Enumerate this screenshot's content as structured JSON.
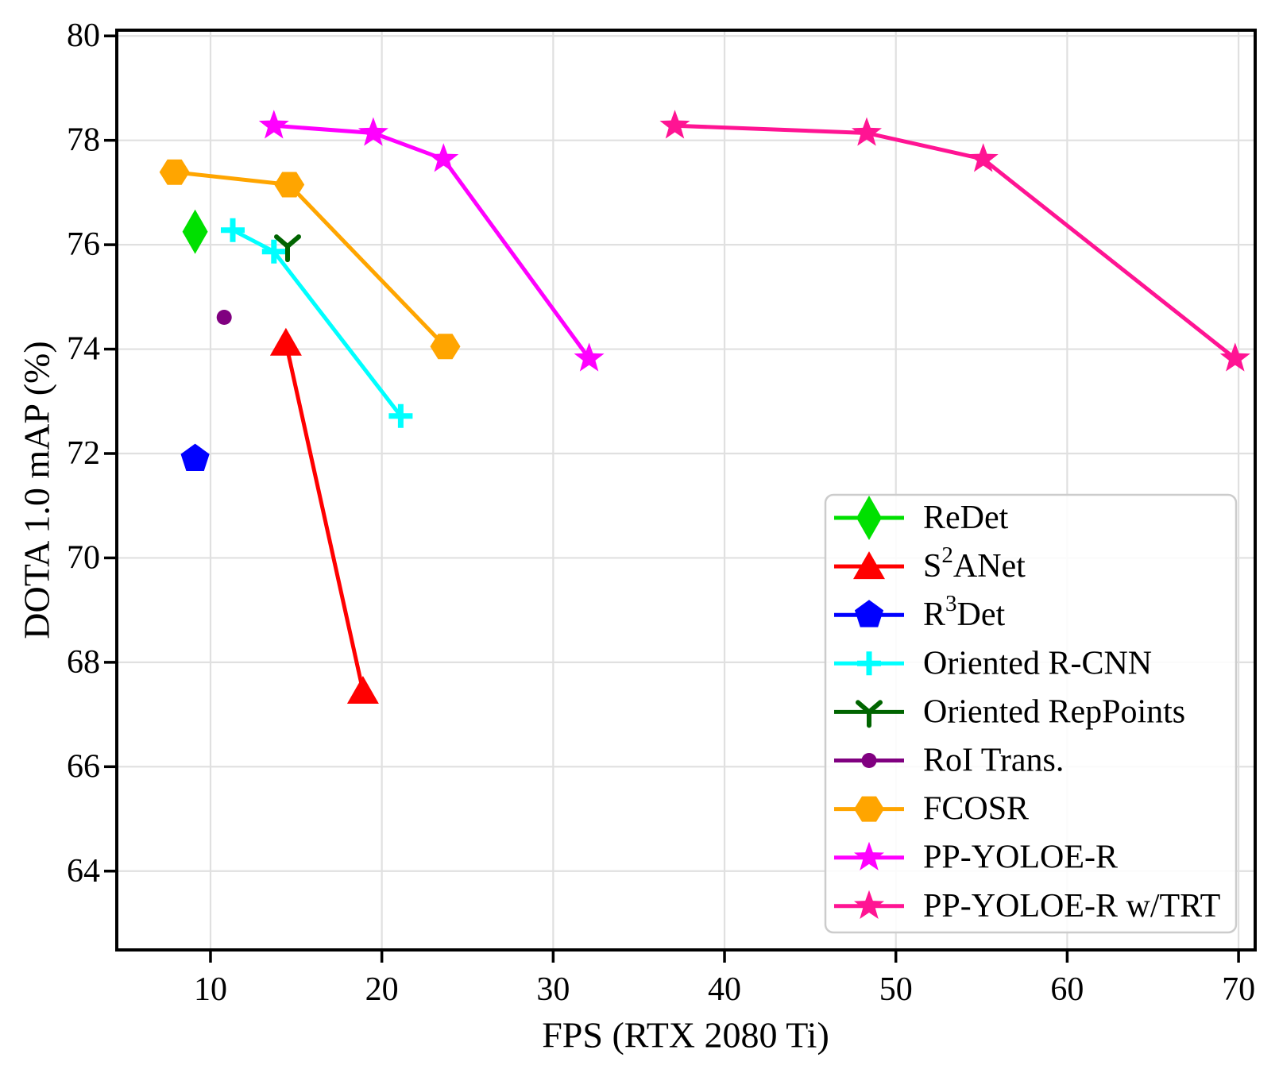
{
  "chart_data": {
    "type": "line",
    "title": "",
    "xlabel": "FPS (RTX 2080 Ti)",
    "ylabel": "DOTA 1.0 mAP (%)",
    "xlim": [
      4.53,
      70.97
    ],
    "ylim": [
      62.49,
      80.11
    ],
    "xticks": [
      10,
      20,
      30,
      40,
      50,
      60,
      70
    ],
    "yticks": [
      64,
      66,
      68,
      70,
      72,
      74,
      76,
      78,
      80
    ],
    "grid": true,
    "legend_position": "lower right",
    "colors": {
      "grid": "#e0e0e0",
      "spine": "#000000",
      "legend_border": "#cccccc",
      "legend_bg": "rgba(255,255,255,0.85)"
    },
    "series": [
      {
        "name": "ReDet",
        "label": "ReDet",
        "color": "#00E000",
        "marker": "thin_diamond",
        "points": [
          [
            9.1,
            76.25
          ]
        ]
      },
      {
        "name": "S2ANet",
        "label": "S^2ANet",
        "color": "#FF0000",
        "marker": "triangle_up",
        "points": [
          [
            14.4,
            74.12
          ],
          [
            18.9,
            67.45
          ]
        ]
      },
      {
        "name": "R3Det",
        "label": "R^3Det",
        "color": "#0000FF",
        "marker": "pentagon",
        "points": [
          [
            9.1,
            71.9
          ]
        ]
      },
      {
        "name": "Oriented R-CNN",
        "label": "Oriented R-CNN",
        "color": "#00FFFF",
        "marker": "plus",
        "points": [
          [
            11.3,
            76.28
          ],
          [
            13.7,
            75.87
          ],
          [
            21.1,
            72.72
          ]
        ]
      },
      {
        "name": "Oriented RepPoints",
        "label": "Oriented RepPoints",
        "color": "#006400",
        "marker": "tri_y",
        "points": [
          [
            14.5,
            75.97
          ]
        ]
      },
      {
        "name": "RoI Trans.",
        "label": "RoI Trans.",
        "color": "#800080",
        "marker": "circle",
        "points": [
          [
            10.8,
            74.61
          ]
        ]
      },
      {
        "name": "FCOSR",
        "label": "FCOSR",
        "color": "#FFA500",
        "marker": "hexagon",
        "points": [
          [
            7.9,
            77.39
          ],
          [
            14.6,
            77.15
          ],
          [
            23.7,
            74.05
          ]
        ]
      },
      {
        "name": "PP-YOLOE-R",
        "label": "PP-YOLOE-R",
        "color": "#FF00FF",
        "marker": "star",
        "points": [
          [
            13.7,
            78.28
          ],
          [
            19.5,
            78.14
          ],
          [
            23.6,
            77.64
          ],
          [
            32.1,
            73.82
          ]
        ]
      },
      {
        "name": "PP-YOLOE-R w/TRT",
        "label": "PP-YOLOE-R w/TRT",
        "color": "#FF1493",
        "marker": "star",
        "points": [
          [
            37.1,
            78.28
          ],
          [
            48.3,
            78.14
          ],
          [
            55.1,
            77.64
          ],
          [
            69.8,
            73.82
          ]
        ]
      }
    ]
  }
}
